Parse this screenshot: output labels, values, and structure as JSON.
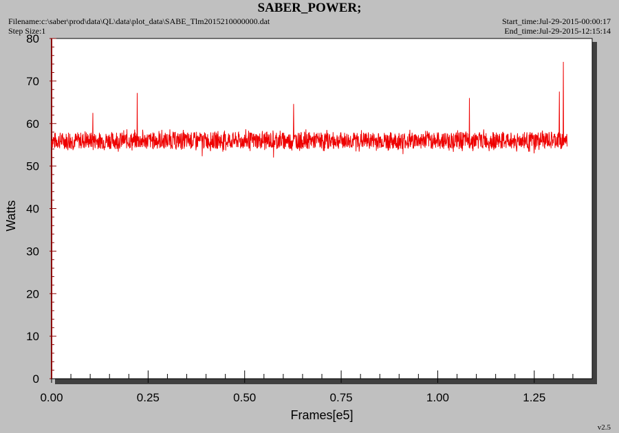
{
  "header": {
    "title": "SABER_POWER;",
    "filename": "Filename:c:\\saber\\prod\\data\\QL\\data\\plot_data\\SABE_Tlm2015210000000.dat",
    "step_size": "Step Size:1",
    "start_time": "Start_time:Jul-29-2015-00:00:17",
    "end_time": "End_time:Jul-29-2015-12:15:14"
  },
  "footer": {
    "version": "v2.5"
  },
  "colors": {
    "series": "#ee0000",
    "axis": "#8b0000",
    "plot_bg": "#ffffff",
    "page_bg": "#c0c0c0",
    "shadow": "#404040"
  },
  "chart_data": {
    "type": "line",
    "title": "SABER_POWER;",
    "xlabel": "Frames[e5]",
    "ylabel": "Watts",
    "xlim": [
      0,
      1.4
    ],
    "ylim": [
      0,
      80
    ],
    "x_ticks": [
      0.0,
      0.25,
      0.5,
      0.75,
      1.0,
      1.25
    ],
    "x_tick_labels": [
      "0.00",
      "0.25",
      "0.50",
      "0.75",
      "1.00",
      "1.25"
    ],
    "y_ticks": [
      0,
      10,
      20,
      30,
      40,
      50,
      60,
      70,
      80
    ],
    "y_tick_labels": [
      "0",
      "10",
      "20",
      "30",
      "40",
      "50",
      "60",
      "70",
      "80"
    ],
    "grid": false,
    "series": [
      {
        "color": "#ee0000",
        "baseline": 56,
        "noise_range": [
          54,
          58
        ],
        "x_end": 1.335,
        "spikes": [
          {
            "x": 0.107,
            "y": 62.5
          },
          {
            "x": 0.222,
            "y": 67.2
          },
          {
            "x": 0.627,
            "y": 64.6
          },
          {
            "x": 1.082,
            "y": 66.0
          },
          {
            "x": 1.315,
            "y": 67.5
          },
          {
            "x": 1.325,
            "y": 74.5
          }
        ],
        "dips": [
          {
            "x": 0.39,
            "y": 52.3
          },
          {
            "x": 0.575,
            "y": 52.0
          },
          {
            "x": 0.91,
            "y": 52.8
          },
          {
            "x": 1.25,
            "y": 53.0
          }
        ]
      }
    ]
  }
}
